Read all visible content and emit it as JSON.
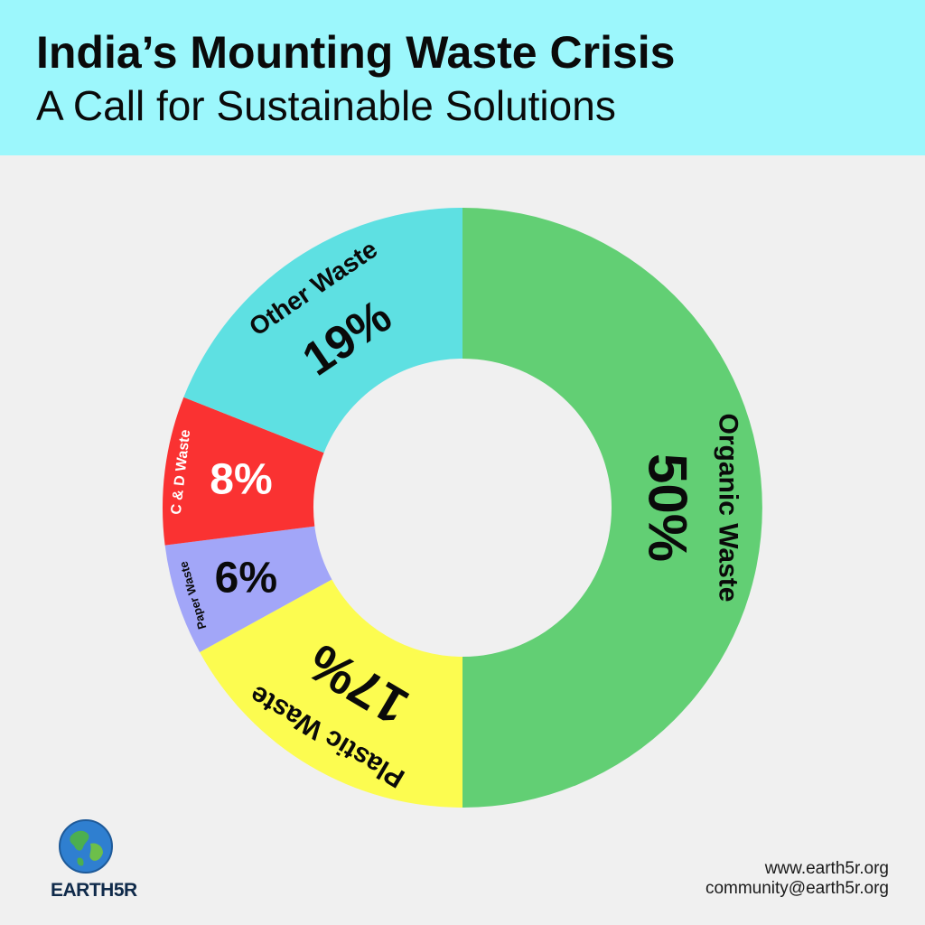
{
  "header": {
    "title": "India’s Mounting Waste Crisis",
    "subtitle": "A Call for Sustainable Solutions"
  },
  "chart_data": {
    "type": "pie",
    "style": "donut",
    "title": "India’s Mounting Waste Crisis",
    "subtitle": "A Call for Sustainable Solutions",
    "categories": [
      "Organic Waste",
      "Plastic Waste",
      "Paper Waste",
      "C & D Waste",
      "Other Waste"
    ],
    "values": [
      50,
      17,
      6,
      8,
      19
    ],
    "labels": [
      "50%",
      "17%",
      "6%",
      "8%",
      "19%"
    ],
    "colors": [
      "#62cf74",
      "#fcfc50",
      "#a2a6f8",
      "#fa3232",
      "#5ee0e2"
    ],
    "label_colors": [
      "#0a0a0a",
      "#0a0a0a",
      "#0a0a0a",
      "#ffffff",
      "#0a0a0a"
    ],
    "direction": "clockwise from top",
    "legend": "none"
  },
  "footer": {
    "brand": "EARTH5R",
    "website": "www.earth5r.org",
    "email": "community@earth5r.org"
  },
  "icons": {
    "logo": "globe-icon"
  }
}
